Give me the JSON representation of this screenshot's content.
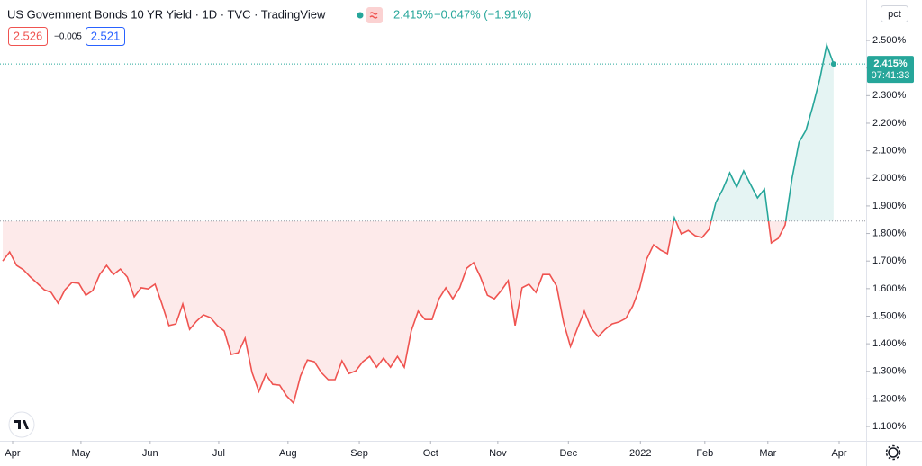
{
  "header": {
    "title": "US Government Bonds 10 YR Yield · 1D · TVC · TradingView",
    "last": "2.415%",
    "change": "−0.047% (−1.91%)",
    "bid": "2.526",
    "spread": "−0.005",
    "ask": "2.521"
  },
  "chart_data": {
    "type": "baseline",
    "values": [
      1.7,
      1.733,
      1.684,
      1.668,
      1.642,
      1.619,
      1.596,
      1.586,
      1.547,
      1.596,
      1.622,
      1.619,
      1.576,
      1.593,
      1.651,
      1.684,
      1.651,
      1.671,
      1.642,
      1.57,
      1.603,
      1.599,
      1.616,
      1.544,
      1.466,
      1.472,
      1.544,
      1.452,
      1.482,
      1.505,
      1.495,
      1.466,
      1.446,
      1.361,
      1.367,
      1.42,
      1.296,
      1.227,
      1.289,
      1.253,
      1.25,
      1.211,
      1.185,
      1.283,
      1.341,
      1.335,
      1.296,
      1.27,
      1.27,
      1.338,
      1.292,
      1.302,
      1.335,
      1.354,
      1.315,
      1.348,
      1.315,
      1.354,
      1.315,
      1.446,
      1.518,
      1.488,
      1.488,
      1.563,
      1.603,
      1.563,
      1.603,
      1.674,
      1.694,
      1.642,
      1.576,
      1.563,
      1.593,
      1.629,
      1.466,
      1.603,
      1.616,
      1.586,
      1.651,
      1.651,
      1.609,
      1.478,
      1.39,
      1.456,
      1.518,
      1.456,
      1.426,
      1.452,
      1.472,
      1.479,
      1.492,
      1.537,
      1.603,
      1.707,
      1.759,
      1.74,
      1.727,
      1.857,
      1.798,
      1.811,
      1.792,
      1.785,
      1.815,
      1.913,
      1.961,
      2.02,
      1.968,
      2.027,
      1.978,
      1.929,
      1.961,
      1.766,
      1.782,
      1.831,
      2.001,
      2.131,
      2.174,
      2.262,
      2.36,
      2.484,
      2.415
    ],
    "baseline": 1.845,
    "above_color": "#26a69a",
    "below_color": "#ef5350",
    "xlim": [
      -0.39,
      124.7
    ],
    "xticks": [
      {
        "value": 1.43,
        "label": "Apr"
      },
      {
        "value": 11.3,
        "label": "May"
      },
      {
        "value": 21.3,
        "label": "Jun"
      },
      {
        "value": 31.2,
        "label": "Jul"
      },
      {
        "value": 41.2,
        "label": "Aug"
      },
      {
        "value": 51.5,
        "label": "Sep"
      },
      {
        "value": 61.8,
        "label": "Oct"
      },
      {
        "value": 71.5,
        "label": "Nov"
      },
      {
        "value": 81.7,
        "label": "Dec"
      },
      {
        "value": 92.1,
        "label": "2022"
      },
      {
        "value": 101.4,
        "label": "Feb"
      },
      {
        "value": 110.5,
        "label": "Mar"
      },
      {
        "value": 120.8,
        "label": "Apr"
      }
    ],
    "ylim": [
      1.048,
      2.647
    ],
    "yticks": [
      {
        "value": 1.1,
        "label": "1.100%"
      },
      {
        "value": 1.2,
        "label": "1.200%"
      },
      {
        "value": 1.3,
        "label": "1.300%"
      },
      {
        "value": 1.4,
        "label": "1.400%"
      },
      {
        "value": 1.5,
        "label": "1.500%"
      },
      {
        "value": 1.6,
        "label": "1.600%"
      },
      {
        "value": 1.7,
        "label": "1.700%"
      },
      {
        "value": 1.8,
        "label": "1.800%"
      },
      {
        "value": 1.9,
        "label": "1.900%"
      },
      {
        "value": 2.0,
        "label": "2.000%"
      },
      {
        "value": 2.1,
        "label": "2.100%"
      },
      {
        "value": 2.2,
        "label": "2.200%"
      },
      {
        "value": 2.3,
        "label": "2.300%"
      },
      {
        "value": 2.4,
        "label": "2.400%"
      },
      {
        "value": 2.5,
        "label": "2.500%"
      }
    ],
    "last_price": 2.415,
    "last_label": "2.415%",
    "countdown": "07:41:33",
    "scale_label": "pct"
  }
}
